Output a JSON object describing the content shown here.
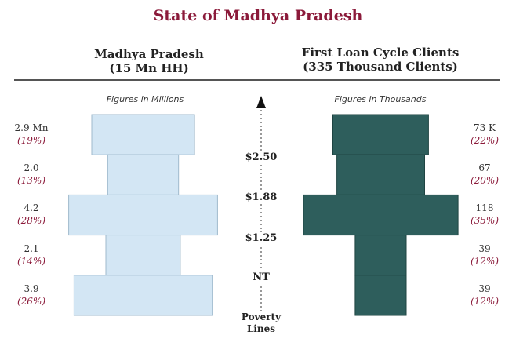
{
  "title": "State of Madhya Pradesh",
  "left_header": {
    "line1": "Madhya Pradesh",
    "line2": "(15 Mn HH)"
  },
  "right_header": {
    "line1": "First Loan Cycle Clients",
    "line2": "(335 Thousand Clients)"
  },
  "left_note": "Figures in Millions",
  "right_note": "Figures in Thousands",
  "poverty_lines": {
    "labels": [
      "$2.50",
      "$1.88",
      "$1.25",
      "NT"
    ],
    "title_line1": "Poverty",
    "title_line2": "Lines"
  },
  "colors": {
    "title": "#8b1a3a",
    "left_bars": "#d3e6f4",
    "right_bars": "#2e5e5c",
    "percent": "#8b1a3a"
  },
  "chart_data": [
    {
      "type": "bar",
      "orientation": "horizontal-centered",
      "name": "Madhya Pradesh",
      "unit": "Millions",
      "categories": [
        "Above $2.50",
        "$1.88 - $2.50",
        "$1.25 - $1.88",
        "NT - $1.25",
        "Below NT"
      ],
      "values": [
        2.9,
        2.0,
        4.2,
        2.1,
        3.9
      ],
      "value_labels": [
        "2.9 Mn",
        "2.0",
        "4.2",
        "2.1",
        "3.9"
      ],
      "percent_labels": [
        "(19%)",
        "(13%)",
        "(28%)",
        "(14%)",
        "(26%)"
      ]
    },
    {
      "type": "bar",
      "orientation": "horizontal-centered",
      "name": "First Loan Cycle Clients",
      "unit": "Thousands",
      "categories": [
        "Above $2.50",
        "$1.88 - $2.50",
        "$1.25 - $1.88",
        "NT - $1.25",
        "Below NT"
      ],
      "values": [
        73,
        67,
        118,
        39,
        39
      ],
      "value_labels": [
        "73 K",
        "67",
        "118",
        "39",
        "39"
      ],
      "percent_labels": [
        "(22%)",
        "(20%)",
        "(35%)",
        "(12%)",
        "(12%)"
      ]
    }
  ]
}
